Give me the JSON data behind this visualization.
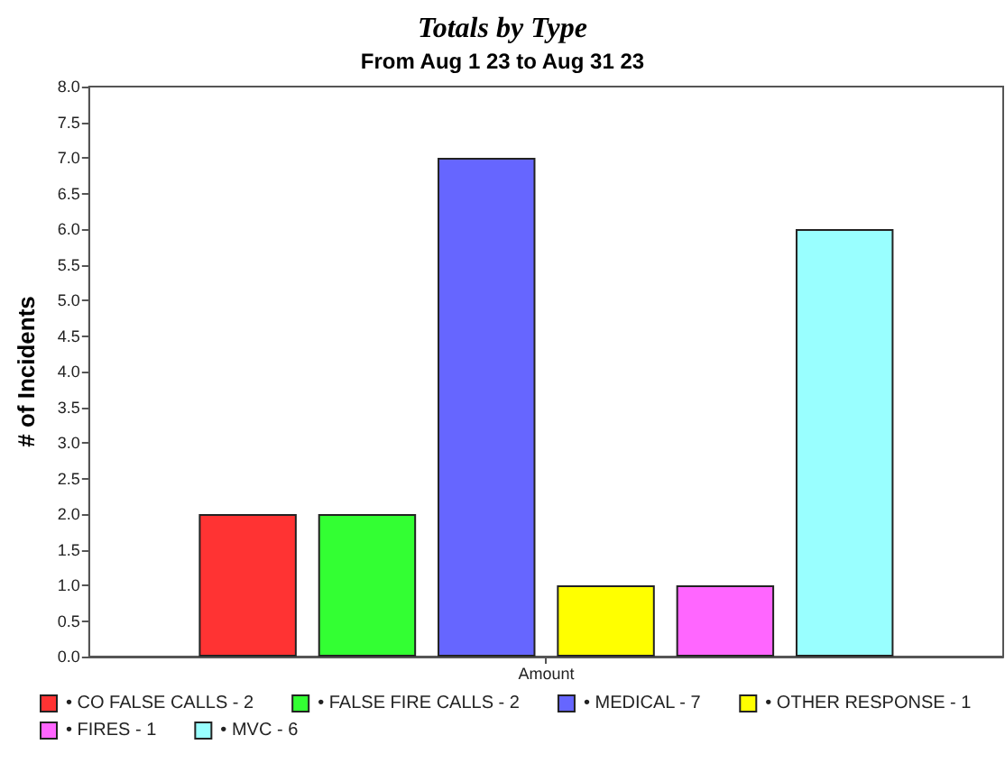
{
  "chart_data": {
    "type": "bar",
    "title": "Totals by Type",
    "subtitle": "From Aug 1 23 to Aug 31 23",
    "ylabel": "# of Incidents",
    "categories": [
      "Amount"
    ],
    "series": [
      {
        "name": "• CO FALSE CALLS - 2",
        "color": "#ff3333",
        "values": [
          2
        ]
      },
      {
        "name": "• FALSE FIRE CALLS - 2",
        "color": "#33ff33",
        "values": [
          2
        ]
      },
      {
        "name": "• MEDICAL - 7",
        "color": "#6666ff",
        "values": [
          7
        ]
      },
      {
        "name": "• OTHER RESPONSE - 1",
        "color": "#ffff00",
        "values": [
          1
        ]
      },
      {
        "name": "• FIRES - 1",
        "color": "#ff66ff",
        "values": [
          1
        ]
      },
      {
        "name": "• MVC - 6",
        "color": "#99ffff",
        "values": [
          6
        ]
      }
    ],
    "ylim": [
      0,
      8
    ],
    "yticks": [
      {
        "value": 0,
        "label": "0.0"
      },
      {
        "value": 0.5,
        "label": "0.5"
      },
      {
        "value": 1,
        "label": "1.0"
      },
      {
        "value": 1.5,
        "label": "1.5"
      },
      {
        "value": 2,
        "label": "2.0"
      },
      {
        "value": 2.5,
        "label": "2.5"
      },
      {
        "value": 3,
        "label": "3.0"
      },
      {
        "value": 3.5,
        "label": "3.5"
      },
      {
        "value": 4,
        "label": "4.0"
      },
      {
        "value": 4.5,
        "label": "4.5"
      },
      {
        "value": 5,
        "label": "5.0"
      },
      {
        "value": 5.5,
        "label": "5.5"
      },
      {
        "value": 6,
        "label": "6.0"
      },
      {
        "value": 6.5,
        "label": "6.5"
      },
      {
        "value": 7,
        "label": "7.0"
      },
      {
        "value": 7.5,
        "label": "7.5"
      },
      {
        "value": 8,
        "label": "8.0"
      }
    ],
    "grid": false,
    "legend": "bottom"
  }
}
